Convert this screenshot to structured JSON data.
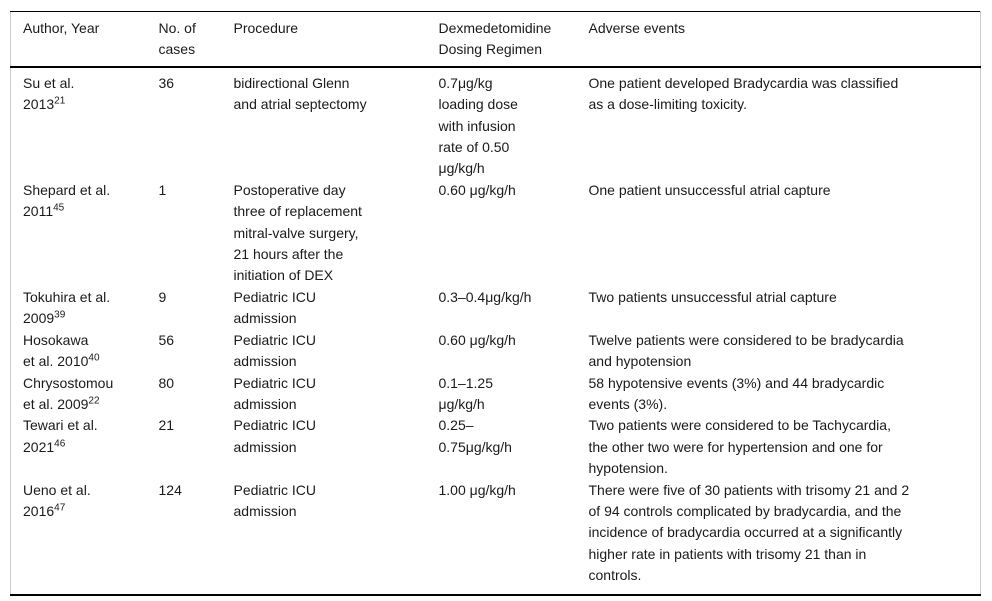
{
  "table": {
    "headers": [
      "Author, Year",
      "No. of\ncases",
      "Procedure",
      "Dexmedetomidine\nDosing Regimen",
      "Adverse events"
    ],
    "rows": [
      {
        "author_line1": "Su et al.",
        "author_line2": "2013",
        "ref": "21",
        "cases": "36",
        "procedure": "bidirectional Glenn\nand atrial septectomy",
        "dosing": "0.7μg/kg\nloading dose\nwith infusion\nrate of 0.50\nμg/kg/h",
        "adverse": "One patient developed Bradycardia was classified\nas a dose-limiting toxicity."
      },
      {
        "author_line1": "Shepard et al.",
        "author_line2": "2011",
        "ref": "45",
        "cases": "1",
        "procedure": "Postoperative day\nthree of replacement\nmitral-valve surgery,\n21 hours after the\ninitiation of DEX",
        "dosing": "0.60 μg/kg/h",
        "adverse": "One patient unsuccessful atrial capture"
      },
      {
        "author_line1": "Tokuhira et al.",
        "author_line2": "2009",
        "ref": "39",
        "cases": "9",
        "procedure": "Pediatric ICU\nadmission",
        "dosing": "0.3–0.4μg/kg/h",
        "adverse": "Two patients unsuccessful atrial capture"
      },
      {
        "author_line1": "Hosokawa",
        "author_line2": "et al. 2010",
        "ref": "40",
        "cases": "56",
        "procedure": "Pediatric ICU\nadmission",
        "dosing": "0.60 μg/kg/h",
        "adverse": "Twelve patients were considered to be bradycardia\nand hypotension"
      },
      {
        "author_line1": "Chrysostomou",
        "author_line2": "et al. 2009",
        "ref": "22",
        "cases": "80",
        "procedure": "Pediatric ICU\nadmission",
        "dosing": "0.1–1.25\nμg/kg/h",
        "adverse": "58 hypotensive events (3%) and 44 bradycardic\nevents (3%)."
      },
      {
        "author_line1": "Tewari et al.",
        "author_line2": "2021",
        "ref": "46",
        "cases": "21",
        "procedure": "Pediatric ICU\nadmission",
        "dosing": "0.25–\n0.75μg/kg/h",
        "adverse": "Two patients were considered to be Tachycardia,\nthe other two were for hypertension and one for\nhypotension."
      },
      {
        "author_line1": "Ueno et al.",
        "author_line2": "2016",
        "ref": "47",
        "cases": "124",
        "procedure": "Pediatric ICU\nadmission",
        "dosing": "1.00 μg/kg/h",
        "adverse": "There were five of 30 patients with trisomy 21 and 2\nof 94 controls complicated by bradycardia, and the\nincidence of bradycardia occurred at a significantly\nhigher rate in patients with trisomy 21 than in\ncontrols."
      }
    ]
  },
  "colors": {
    "rule": "#000000",
    "edge": "#cccccc",
    "text": "#1a1a1a",
    "background": "#ffffff"
  }
}
